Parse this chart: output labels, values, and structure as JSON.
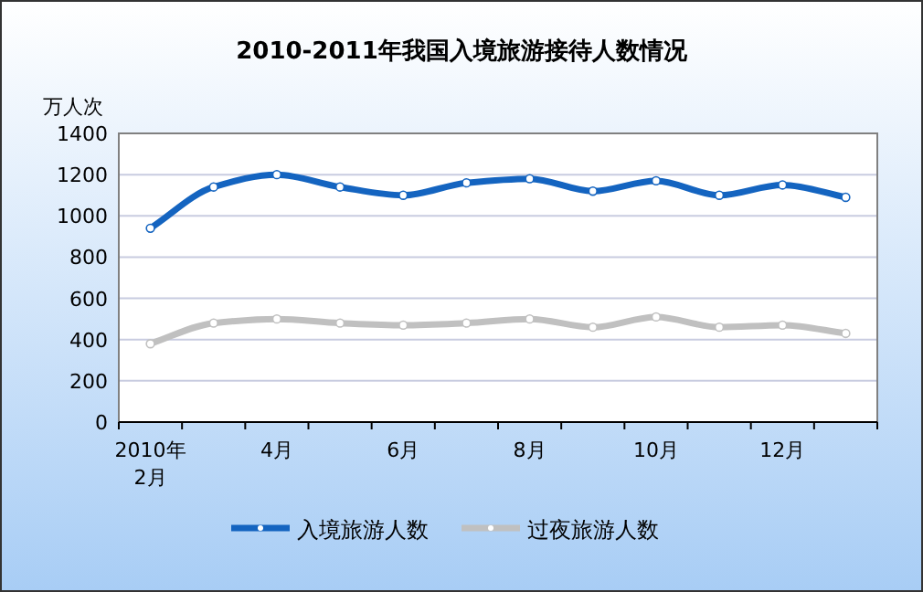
{
  "chart_data": {
    "type": "line",
    "title": "2010-2011年我国入境旅游接待人数情况",
    "ylabel": "万人次",
    "categories": [
      "2010年\n2月",
      null,
      "4月",
      null,
      "6月",
      null,
      "8月",
      null,
      "10月",
      null,
      "12月",
      null
    ],
    "series": [
      {
        "name": "入境旅游人数",
        "color": "#1464c0",
        "values": [
          940,
          1140,
          1200,
          1140,
          1100,
          1160,
          1180,
          1120,
          1170,
          1100,
          1150,
          1090
        ]
      },
      {
        "name": "过夜旅游人数",
        "color": "#c0c0c0",
        "values": [
          380,
          480,
          500,
          480,
          470,
          480,
          500,
          460,
          510,
          460,
          470,
          430
        ]
      }
    ],
    "ylim": [
      0,
      1400
    ],
    "yticks": [
      0,
      200,
      400,
      600,
      800,
      1000,
      1200,
      1400
    ],
    "grid": "y",
    "legend": "bottom",
    "marker": "circle"
  }
}
